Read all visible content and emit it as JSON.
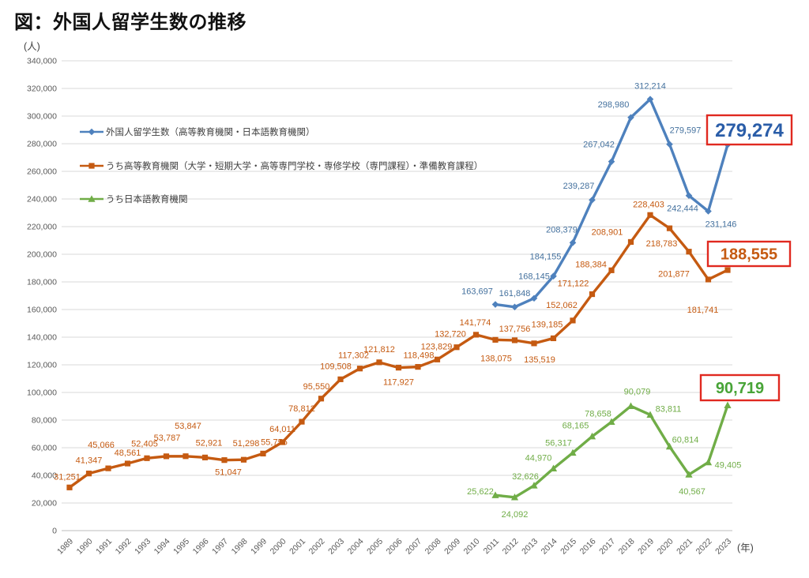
{
  "page": {
    "title": "図：外国人留学生数の推移"
  },
  "chart_data": {
    "type": "line",
    "title": "図：外国人留学生数の推移",
    "grid": "horizontal",
    "legend_position": "inside-top-left",
    "y_axis": {
      "unit_label": "(人)",
      "min": 0,
      "max": 340000,
      "tick_step": 20000,
      "tick_labels": [
        "0",
        "20,000",
        "40,000",
        "60,000",
        "80,000",
        "100,000",
        "120,000",
        "140,000",
        "160,000",
        "180,000",
        "200,000",
        "220,000",
        "240,000",
        "260,000",
        "280,000",
        "300,000",
        "320,000",
        "340,000"
      ]
    },
    "x_axis": {
      "unit_label": "(年)",
      "categories": [
        "1989",
        "1990",
        "1991",
        "1992",
        "1993",
        "1994",
        "1995",
        "1996",
        "1997",
        "1998",
        "1999",
        "2000",
        "2001",
        "2002",
        "2003",
        "2004",
        "2005",
        "2006",
        "2007",
        "2008",
        "2009",
        "2010",
        "2011",
        "2012",
        "2013",
        "2014",
        "2015",
        "2016",
        "2017",
        "2018",
        "2019",
        "2020",
        "2021",
        "2022",
        "2023"
      ]
    },
    "series": [
      {
        "name": "外国人留学生数（高等教育機関・日本語教育機関）",
        "color": "#4E81BD",
        "label_color": "#44719E",
        "marker": "diamond",
        "start_year": 2011,
        "values": [
          163697,
          161848,
          168145,
          184155,
          208379,
          239287,
          267042,
          298980,
          312214,
          279597,
          242444,
          231146,
          279274
        ],
        "label_offsets": [
          [
            -23,
            -17
          ],
          [
            0,
            -18
          ],
          [
            0,
            -28
          ],
          [
            -10,
            -25
          ],
          [
            -14,
            -17
          ],
          [
            -17,
            -18
          ],
          [
            -16,
            -22
          ],
          [
            -22,
            -17
          ],
          [
            0,
            -17
          ],
          [
            20,
            -18
          ],
          [
            -8,
            16
          ],
          [
            16,
            16
          ],
          null
        ],
        "annotation": {
          "text": "279,274",
          "color": "#2A5DA8"
        }
      },
      {
        "name": "うち高等教育機関（大学・短期大学・高等専門学校・専修学校（専門課程）・準備教育課程）",
        "color": "#C55A11",
        "label_color": "#C55A11",
        "marker": "square",
        "start_year": 1989,
        "values": [
          31251,
          41347,
          45066,
          48561,
          52405,
          53787,
          53847,
          52921,
          51047,
          51298,
          55755,
          64011,
          78812,
          95550,
          109508,
          117302,
          121812,
          117927,
          118498,
          123829,
          132720,
          141774,
          138075,
          137756,
          135519,
          139185,
          152062,
          171122,
          188384,
          208901,
          228403,
          218783,
          201877,
          181741,
          188555
        ],
        "label_offsets": [
          [
            -3,
            -14
          ],
          [
            0,
            -17
          ],
          [
            -9,
            -30
          ],
          [
            0,
            -14
          ],
          [
            -3,
            -19
          ],
          [
            1,
            -24
          ],
          [
            3,
            -39
          ],
          [
            5,
            -19
          ],
          [
            5,
            15
          ],
          [
            3,
            -21
          ],
          [
            14,
            -15
          ],
          [
            0,
            -17
          ],
          [
            0,
            -17
          ],
          [
            -6,
            -16
          ],
          [
            -6,
            -17
          ],
          [
            -8,
            -17
          ],
          [
            0,
            -17
          ],
          [
            0,
            18
          ],
          [
            1,
            -15
          ],
          [
            -1,
            -17
          ],
          [
            -8,
            -17
          ],
          [
            -1,
            -16
          ],
          [
            1,
            23
          ],
          [
            0,
            -15
          ],
          [
            7,
            20
          ],
          [
            -8,
            -18
          ],
          [
            -14,
            -20
          ],
          [
            -24,
            -14
          ],
          [
            -26,
            -8
          ],
          [
            -30,
            -13
          ],
          [
            -2,
            -14
          ],
          [
            -10,
            19
          ],
          [
            -19,
            28
          ],
          [
            -7,
            38
          ],
          null
        ],
        "annotation": {
          "text": "188,555",
          "color": "#C55A11"
        }
      },
      {
        "name": "うち日本語教育機関",
        "color": "#70AD47",
        "label_color": "#70AD47",
        "marker": "triangle",
        "start_year": 2011,
        "values": [
          25622,
          24092,
          32626,
          44970,
          56317,
          68165,
          78658,
          90079,
          83811,
          60814,
          40567,
          49405,
          90719
        ],
        "label_offsets": [
          [
            -19,
            -5
          ],
          [
            0,
            21
          ],
          [
            -11,
            -12
          ],
          [
            -19,
            -14
          ],
          [
            -18,
            -13
          ],
          [
            -21,
            -14
          ],
          [
            -17,
            -11
          ],
          [
            8,
            -19
          ],
          [
            23,
            -8
          ],
          [
            20,
            -9
          ],
          [
            4,
            21
          ],
          [
            25,
            3
          ],
          null
        ],
        "annotation": {
          "text": "90,719",
          "color": "#48A437"
        }
      }
    ],
    "annotation_border_color": "#E02920"
  }
}
